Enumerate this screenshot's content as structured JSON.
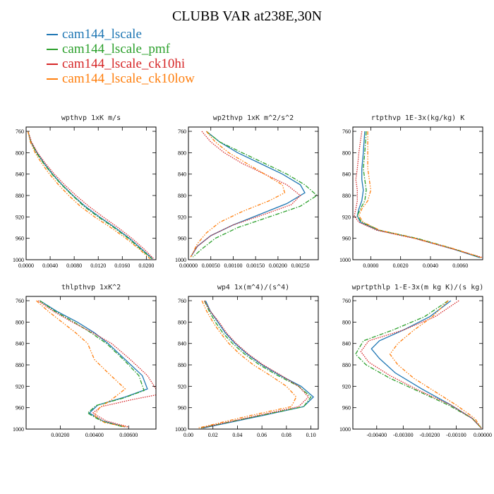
{
  "figure": {
    "title": "CLUBB VAR at238E,30N",
    "legend": [
      {
        "label": "cam144_lscale",
        "color": "#1f77b4",
        "dash": "solid"
      },
      {
        "label": "cam144_lscale_pmf",
        "color": "#2ca02c",
        "dash": "dash-dot"
      },
      {
        "label": "cam144_lscale_ck10hi",
        "color": "#d62728",
        "dash": "dotted"
      },
      {
        "label": "cam144_lscale_ck10low",
        "color": "#ff7f0e",
        "dash": "dash-dot-dot"
      }
    ]
  },
  "chart_data": [
    {
      "type": "line",
      "title": "wpthvp  1xK m/s",
      "xlim": [
        0.0,
        0.0216
      ],
      "ylim": [
        1000,
        752
      ],
      "y_inverted": true,
      "xticks": [
        0.0,
        0.004,
        0.008,
        0.012,
        0.016,
        0.02
      ],
      "xtick_labels": [
        "0.0000",
        "0.0040",
        "0.0080",
        "0.0120",
        "0.0160",
        "0.0200"
      ],
      "yticks": [
        760,
        800,
        840,
        880,
        920,
        960,
        1000
      ],
      "series": [
        {
          "name": "cam144_lscale",
          "x": [
            0.0003,
            0.0008,
            0.0018,
            0.003,
            0.0044,
            0.006,
            0.0078,
            0.0098,
            0.0122,
            0.0148,
            0.0172,
            0.0192,
            0.021
          ],
          "y": [
            760,
            780,
            800,
            820,
            840,
            860,
            880,
            900,
            920,
            940,
            960,
            980,
            998
          ]
        },
        {
          "name": "cam144_lscale_pmf",
          "x": [
            0.0003,
            0.0008,
            0.0017,
            0.0029,
            0.0043,
            0.0059,
            0.0077,
            0.0096,
            0.012,
            0.0146,
            0.017,
            0.019,
            0.0209
          ],
          "y": [
            760,
            780,
            800,
            820,
            840,
            860,
            880,
            900,
            920,
            940,
            960,
            980,
            998
          ]
        },
        {
          "name": "cam144_lscale_ck10hi",
          "x": [
            0.0003,
            0.0009,
            0.0019,
            0.0032,
            0.0047,
            0.0064,
            0.0083,
            0.0104,
            0.0128,
            0.0153,
            0.0176,
            0.0196,
            0.0212
          ],
          "y": [
            760,
            780,
            800,
            820,
            840,
            860,
            880,
            900,
            920,
            940,
            960,
            980,
            998
          ]
        },
        {
          "name": "cam144_lscale_ck10low",
          "x": [
            0.0003,
            0.0007,
            0.0015,
            0.0026,
            0.0039,
            0.0054,
            0.0071,
            0.009,
            0.0114,
            0.0141,
            0.0166,
            0.0188,
            0.0206
          ],
          "y": [
            760,
            780,
            800,
            820,
            840,
            860,
            880,
            900,
            920,
            940,
            960,
            980,
            998
          ]
        }
      ]
    },
    {
      "type": "line",
      "title": "wp2thvp  1xK m^2/s^2",
      "xlim": [
        0.0,
        0.0029
      ],
      "ylim": [
        1000,
        752
      ],
      "y_inverted": true,
      "xticks": [
        0.0,
        0.0005,
        0.001,
        0.0015,
        0.002,
        0.0025
      ],
      "xtick_labels": [
        "0.00000",
        "0.00050",
        "0.00100",
        "0.00150",
        "0.00200",
        "0.00250"
      ],
      "yticks": [
        760,
        800,
        840,
        880,
        920,
        960,
        1000
      ],
      "series": [
        {
          "name": "cam144_lscale",
          "x": [
            0.0004,
            0.0007,
            0.0011,
            0.0016,
            0.0021,
            0.0025,
            0.0026,
            0.0022,
            0.0016,
            0.001,
            0.0005,
            0.0002,
            5e-05
          ],
          "y": [
            760,
            780,
            800,
            820,
            840,
            860,
            875,
            895,
            915,
            935,
            955,
            975,
            995
          ]
        },
        {
          "name": "cam144_lscale_pmf",
          "x": [
            0.0004,
            0.0007,
            0.0012,
            0.0017,
            0.0022,
            0.0026,
            0.00287,
            0.0025,
            0.0018,
            0.0011,
            0.0006,
            0.0003,
            0.0001
          ],
          "y": [
            760,
            780,
            800,
            820,
            840,
            860,
            880,
            900,
            920,
            940,
            960,
            980,
            995
          ]
        },
        {
          "name": "cam144_lscale_ck10hi",
          "x": [
            0.0003,
            0.0005,
            0.0008,
            0.0012,
            0.0017,
            0.0022,
            0.0025,
            0.0023,
            0.0017,
            0.001,
            0.0005,
            0.0002,
            5e-05
          ],
          "y": [
            760,
            780,
            800,
            820,
            840,
            860,
            880,
            897,
            915,
            935,
            955,
            975,
            995
          ]
        },
        {
          "name": "cam144_lscale_ck10low",
          "x": [
            0.0004,
            0.0006,
            0.0009,
            0.0013,
            0.0017,
            0.0021,
            0.00215,
            0.0018,
            0.0012,
            0.0007,
            0.0004,
            0.0002,
            5e-05
          ],
          "y": [
            760,
            780,
            800,
            820,
            840,
            860,
            875,
            890,
            910,
            930,
            950,
            970,
            995
          ]
        }
      ]
    },
    {
      "type": "line",
      "title": "rtpthvp  1E-3x(kg/kg) K",
      "xlim": [
        -0.0012,
        0.0075
      ],
      "ylim": [
        1000,
        752
      ],
      "y_inverted": true,
      "xticks": [
        0.0,
        0.002,
        0.004,
        0.006
      ],
      "xtick_labels": [
        "0.0000",
        "0.0020",
        "0.0040",
        "0.0060"
      ],
      "yticks": [
        760,
        800,
        840,
        880,
        920,
        960,
        1000
      ],
      "series": [
        {
          "name": "cam144_lscale",
          "x": [
            -0.0004,
            -0.0005,
            -0.0006,
            -0.0006,
            -0.0005,
            -0.0006,
            -0.0008,
            -0.0009,
            -0.0007,
            0.0005,
            0.003,
            0.0055,
            0.0073
          ],
          "y": [
            760,
            800,
            830,
            850,
            870,
            890,
            905,
            918,
            930,
            945,
            960,
            980,
            996
          ]
        },
        {
          "name": "cam144_lscale_pmf",
          "x": [
            -0.0003,
            -0.0004,
            -0.0005,
            -0.0004,
            -0.0003,
            -0.0004,
            -0.0007,
            -0.0009,
            -0.0006,
            0.0006,
            0.0031,
            0.0056,
            0.0074
          ],
          "y": [
            760,
            800,
            830,
            850,
            870,
            890,
            905,
            918,
            930,
            945,
            960,
            980,
            996
          ]
        },
        {
          "name": "cam144_lscale_ck10hi",
          "x": [
            -0.0006,
            -0.0008,
            -0.0009,
            -0.001,
            -0.0009,
            -0.0009,
            -0.001,
            -0.0011,
            -0.0008,
            0.0004,
            0.0029,
            0.0055,
            0.0075
          ],
          "y": [
            760,
            800,
            830,
            850,
            870,
            890,
            905,
            918,
            930,
            945,
            960,
            980,
            996
          ]
        },
        {
          "name": "cam144_lscale_ck10low",
          "x": [
            -0.0002,
            -0.0002,
            -0.0002,
            -0.0001,
            0.0,
            -0.0002,
            -0.0006,
            -0.0008,
            -0.0005,
            0.0006,
            0.003,
            0.0056,
            0.0074
          ],
          "y": [
            760,
            800,
            830,
            850,
            870,
            890,
            905,
            918,
            930,
            945,
            960,
            980,
            996
          ]
        }
      ]
    },
    {
      "type": "line",
      "title": "thlpthvp  1xK^2",
      "xlim": [
        0.0,
        0.0076
      ],
      "ylim": [
        1000,
        752
      ],
      "y_inverted": true,
      "xticks": [
        0.002,
        0.004,
        0.006
      ],
      "xtick_labels": [
        "0.00200",
        "0.00400",
        "0.00600"
      ],
      "yticks": [
        760,
        800,
        840,
        880,
        920,
        960,
        1000
      ],
      "series": [
        {
          "name": "cam144_lscale",
          "x": [
            0.0008,
            0.0018,
            0.003,
            0.004,
            0.0048,
            0.0058,
            0.0068,
            0.0071,
            0.0058,
            0.0042,
            0.0037,
            0.0045,
            0.0058
          ],
          "y": [
            760,
            780,
            800,
            820,
            840,
            870,
            900,
            925,
            940,
            955,
            970,
            985,
            996
          ]
        },
        {
          "name": "cam144_lscale_pmf",
          "x": [
            0.0008,
            0.0017,
            0.0028,
            0.0038,
            0.0047,
            0.0057,
            0.0066,
            0.0069,
            0.0057,
            0.0041,
            0.0036,
            0.0044,
            0.0057
          ],
          "y": [
            760,
            780,
            800,
            820,
            840,
            870,
            900,
            928,
            942,
            956,
            970,
            985,
            996
          ]
        },
        {
          "name": "cam144_lscale_ck10hi",
          "x": [
            0.0007,
            0.0016,
            0.0027,
            0.0039,
            0.005,
            0.0061,
            0.0071,
            0.0078,
            0.0062,
            0.0044,
            0.0039,
            0.0047,
            0.006
          ],
          "y": [
            760,
            780,
            800,
            820,
            840,
            870,
            900,
            935,
            945,
            958,
            970,
            985,
            996
          ]
        },
        {
          "name": "cam144_lscale_ck10low",
          "x": [
            0.0006,
            0.0013,
            0.0021,
            0.0029,
            0.0036,
            0.004,
            0.0048,
            0.0058,
            0.005,
            0.0043,
            0.004,
            0.0046,
            0.0059
          ],
          "y": [
            760,
            780,
            800,
            820,
            840,
            870,
            895,
            925,
            945,
            960,
            975,
            988,
            996
          ]
        }
      ]
    },
    {
      "type": "line",
      "title": "wp4  1x(m^4)/(s^4)",
      "xlim": [
        0.0,
        0.106
      ],
      "ylim": [
        1000,
        752
      ],
      "y_inverted": true,
      "xticks": [
        0.0,
        0.02,
        0.04,
        0.06,
        0.08,
        0.1
      ],
      "xtick_labels": [
        "0.00",
        "0.02",
        "0.04",
        "0.06",
        "0.08",
        "0.10"
      ],
      "yticks": [
        760,
        800,
        840,
        880,
        920,
        960,
        1000
      ],
      "series": [
        {
          "name": "cam144_lscale",
          "x": [
            0.014,
            0.018,
            0.024,
            0.03,
            0.038,
            0.048,
            0.06,
            0.075,
            0.092,
            0.102,
            0.094,
            0.06,
            0.012
          ],
          "y": [
            760,
            780,
            800,
            820,
            840,
            860,
            880,
            900,
            920,
            940,
            958,
            975,
            998
          ]
        },
        {
          "name": "cam144_lscale_pmf",
          "x": [
            0.013,
            0.017,
            0.022,
            0.028,
            0.036,
            0.046,
            0.058,
            0.073,
            0.09,
            0.1,
            0.094,
            0.058,
            0.01
          ],
          "y": [
            760,
            780,
            800,
            820,
            840,
            860,
            880,
            900,
            920,
            940,
            958,
            975,
            998
          ]
        },
        {
          "name": "cam144_lscale_ck10hi",
          "x": [
            0.013,
            0.018,
            0.025,
            0.031,
            0.039,
            0.049,
            0.061,
            0.076,
            0.09,
            0.098,
            0.09,
            0.056,
            0.01
          ],
          "y": [
            760,
            780,
            800,
            820,
            840,
            860,
            880,
            900,
            920,
            940,
            958,
            975,
            998
          ]
        },
        {
          "name": "cam144_lscale_ck10low",
          "x": [
            0.011,
            0.015,
            0.02,
            0.026,
            0.033,
            0.042,
            0.053,
            0.067,
            0.08,
            0.088,
            0.084,
            0.05,
            0.008
          ],
          "y": [
            760,
            780,
            800,
            820,
            840,
            860,
            880,
            900,
            920,
            940,
            958,
            975,
            998
          ]
        }
      ]
    },
    {
      "type": "line",
      "title": "wprtpthlp  1-E-3x(m kg K)/(s kg)",
      "xlim": [
        -0.0049,
        0.0
      ],
      "ylim": [
        1000,
        752
      ],
      "y_inverted": true,
      "xticks": [
        -0.004,
        -0.003,
        -0.002,
        -0.001,
        0.0
      ],
      "xtick_labels": [
        "-0.00400",
        "-0.00300",
        "-0.00200",
        "-0.00100",
        "0.00000"
      ],
      "yticks": [
        760,
        800,
        840,
        880,
        920,
        960,
        1000
      ],
      "series": [
        {
          "name": "cam144_lscale",
          "x": [
            -0.0012,
            -0.002,
            -0.003,
            -0.0039,
            -0.0042,
            -0.0039,
            -0.0033,
            -0.0023,
            -0.0012,
            -0.0004,
            -5e-05
          ],
          "y": [
            760,
            790,
            815,
            835,
            850,
            868,
            895,
            925,
            955,
            980,
            998
          ]
        },
        {
          "name": "cam144_lscale_pmf",
          "x": [
            -0.0013,
            -0.0022,
            -0.0034,
            -0.0045,
            -0.0048,
            -0.0044,
            -0.0035,
            -0.0024,
            -0.0013,
            -0.0004,
            -5e-05
          ],
          "y": [
            760,
            790,
            815,
            835,
            860,
            880,
            905,
            930,
            955,
            980,
            998
          ]
        },
        {
          "name": "cam144_lscale_ck10hi",
          "x": [
            -0.0009,
            -0.0018,
            -0.003,
            -0.0043,
            -0.0046,
            -0.0043,
            -0.0035,
            -0.0024,
            -0.0012,
            -0.0004,
            -5e-05
          ],
          "y": [
            760,
            790,
            815,
            835,
            855,
            875,
            900,
            928,
            955,
            980,
            998
          ]
        },
        {
          "name": "cam144_lscale_ck10low",
          "x": [
            -0.0013,
            -0.0019,
            -0.0026,
            -0.0032,
            -0.0035,
            -0.0032,
            -0.0026,
            -0.0018,
            -0.001,
            -0.0003,
            -5e-05
          ],
          "y": [
            760,
            790,
            815,
            840,
            860,
            880,
            905,
            930,
            955,
            980,
            998
          ]
        }
      ]
    }
  ]
}
